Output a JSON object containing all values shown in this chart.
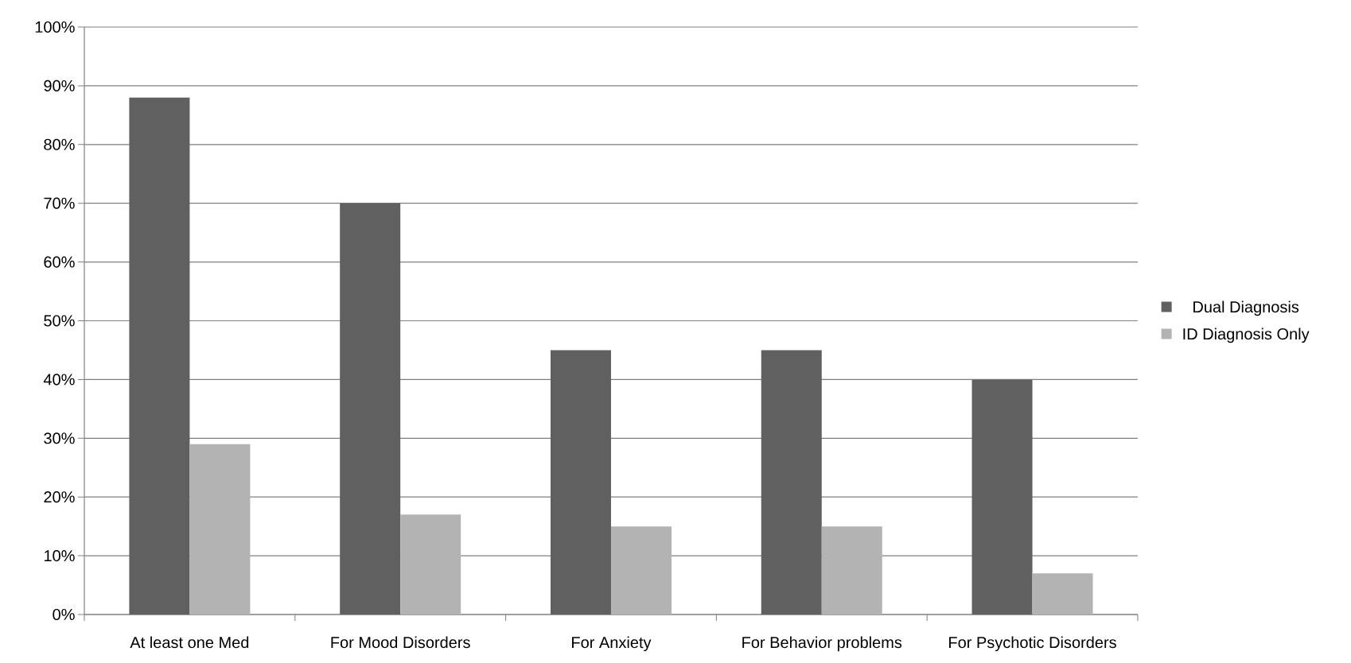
{
  "chart_data": {
    "type": "bar",
    "categories": [
      "At least one Med",
      "For Mood Disorders",
      "For Anxiety",
      "For Behavior problems",
      "For Psychotic Disorders"
    ],
    "series": [
      {
        "name": "Dual Diagnosis",
        "color": "#606060",
        "values": [
          88,
          70,
          45,
          45,
          40
        ]
      },
      {
        "name": "ID Diagnosis Only",
        "color": "#b3b3b3",
        "values": [
          29,
          17,
          15,
          15,
          7
        ]
      }
    ],
    "ylim": [
      0,
      100
    ],
    "yticks": [
      {
        "value": 0,
        "label": "0%"
      },
      {
        "value": 10,
        "label": "10%"
      },
      {
        "value": 20,
        "label": "20%"
      },
      {
        "value": 30,
        "label": "30%"
      },
      {
        "value": 40,
        "label": "40%"
      },
      {
        "value": 50,
        "label": "50%"
      },
      {
        "value": 60,
        "label": "60%"
      },
      {
        "value": 70,
        "label": "70%"
      },
      {
        "value": 80,
        "label": "80%"
      },
      {
        "value": 90,
        "label": "90%"
      },
      {
        "value": 100,
        "label": "100%"
      }
    ],
    "grid": "y",
    "legend": "right"
  }
}
